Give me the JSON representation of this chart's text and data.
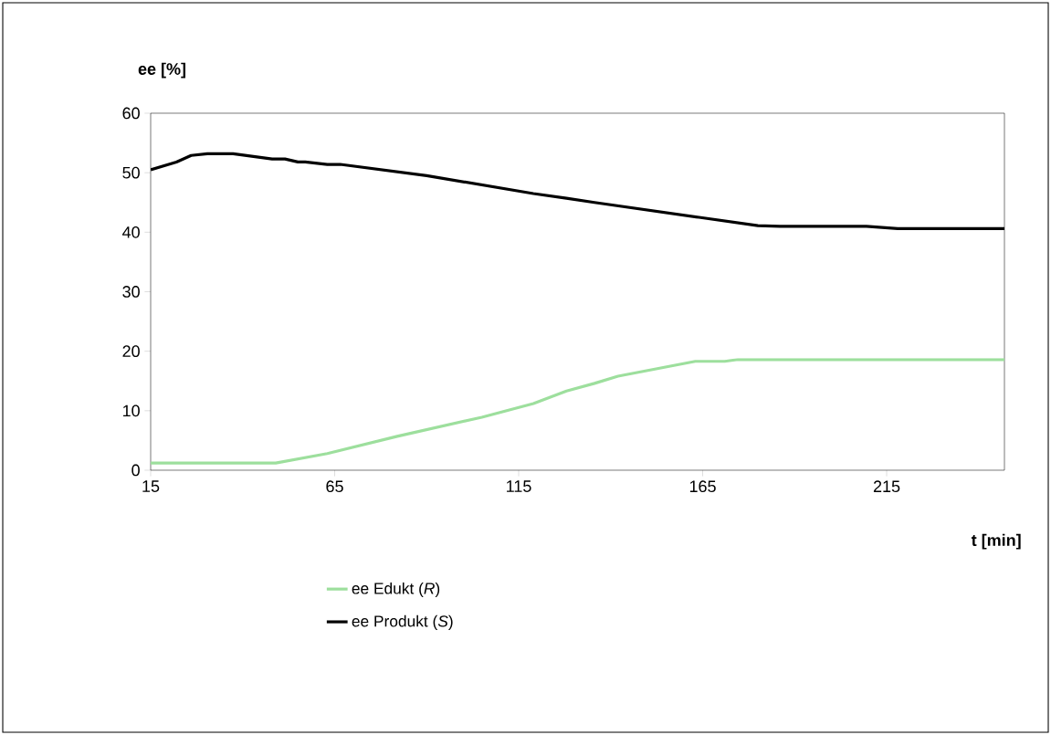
{
  "chart_data": {
    "type": "line",
    "xlabel": "t [min]",
    "ylabel": "ee [%]",
    "xlim": [
      15,
      247
    ],
    "xticks": [
      15,
      65,
      115,
      165,
      215
    ],
    "ylim": [
      0,
      60
    ],
    "yticks": [
      0,
      10,
      20,
      30,
      40,
      50,
      60
    ],
    "grid": false,
    "legend": "bottom",
    "marker": "none",
    "line_style": "solid",
    "series": [
      {
        "name": "ee Edukt    (*R*)",
        "color": "#9ddf9d",
        "x": [
          15,
          49,
          63,
          82,
          105,
          119,
          128,
          135.6,
          142,
          163,
          171,
          174.6,
          247
        ],
        "values": [
          1.2,
          1.2,
          2.8,
          5.7,
          8.9,
          11.2,
          13.3,
          14.6,
          15.8,
          18.3,
          18.3,
          18.6,
          18.6
        ]
      },
      {
        "name": "ee Produkt   (*S*)",
        "color": "#000000",
        "x": [
          15,
          22,
          26,
          30.4,
          37.4,
          48,
          51.5,
          55,
          57,
          63,
          66.5,
          90,
          119,
          128,
          135.6,
          164,
          180,
          186,
          209.5,
          218,
          240,
          247
        ],
        "values": [
          50.5,
          51.8,
          52.9,
          53.2,
          53.2,
          52.3,
          52.3,
          51.8,
          51.8,
          51.4,
          51.4,
          49.5,
          46.5,
          45.7,
          45,
          42.5,
          41.1,
          41,
          41,
          40.6,
          40.6,
          40.6
        ]
      }
    ]
  }
}
